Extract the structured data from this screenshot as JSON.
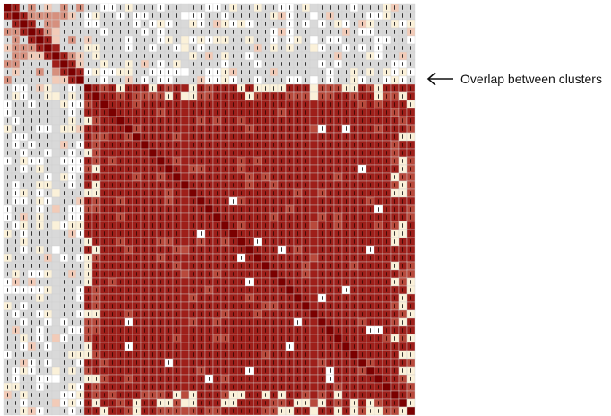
{
  "chart_data": {
    "type": "heatmap",
    "title": "",
    "xlabel": "",
    "ylabel": "",
    "matrix_size": 51,
    "grid": true,
    "cell_glyph": "dash-marks",
    "colors": {
      "diagonal": "#7a0000",
      "high": "#9e1f1a",
      "medium_high": "#b84a3c",
      "medium": "#d6907e",
      "low": "#f2cbb8",
      "very_low": "#fbf1d9",
      "none": "#ffffff",
      "missing": "#d9d9d9"
    },
    "clusters": [
      {
        "name_shown": false,
        "start_index": 1,
        "end_index": 10,
        "level": "medium"
      },
      {
        "name_shown": false,
        "start_index": 11,
        "end_index": 51,
        "level": "high"
      }
    ],
    "annotations": [
      {
        "text": "Overlap between clusters",
        "pointer": "left-arrow",
        "target_row": 10
      }
    ]
  }
}
